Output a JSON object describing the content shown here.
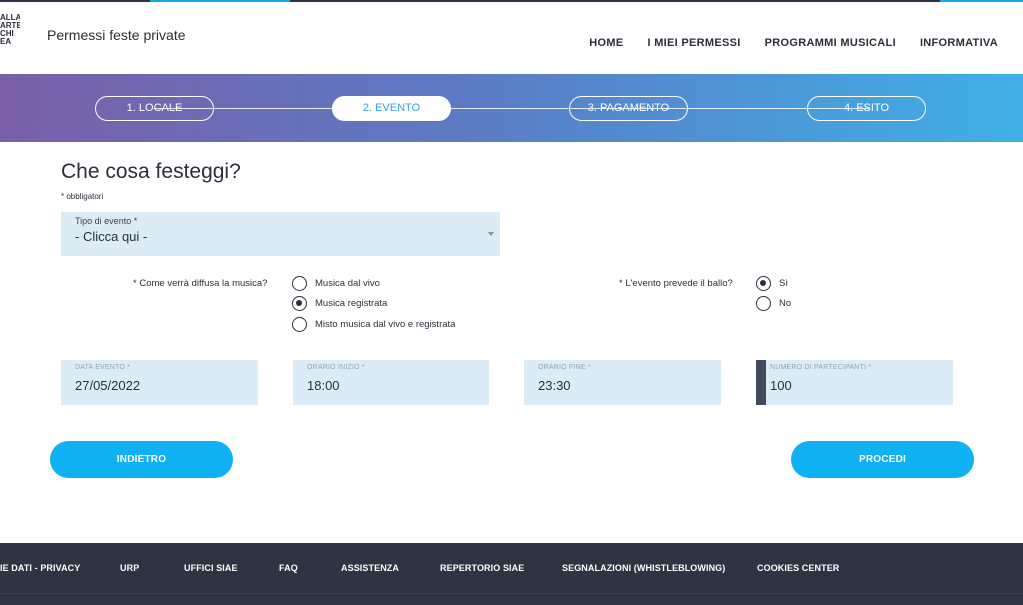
{
  "header": {
    "logo_lines": [
      "ALLA",
      "ARTE",
      "CHI",
      "EA"
    ],
    "app_title": "Permessi feste private",
    "nav": [
      "HOME",
      "I MIEI PERMESSI",
      "PROGRAMMI MUSICALI",
      "INFORMATIVA"
    ]
  },
  "steps": [
    {
      "label": "1. LOCALE",
      "active": false
    },
    {
      "label": "2. EVENTO",
      "active": true
    },
    {
      "label": "3. PAGAMENTO",
      "active": false
    },
    {
      "label": "4. ESITO",
      "active": false
    }
  ],
  "form": {
    "title": "Che cosa festeggi?",
    "required_note": "* obbligatori",
    "event_type": {
      "label": "Tipo di evento *",
      "value": "- Clicca qui -"
    },
    "music": {
      "question": "* Come verrà diffusa la musica?",
      "options": [
        "Musica dal vivo",
        "Musica registrata",
        "Misto musica dal vivo e registrata"
      ],
      "selected": "Musica registrata"
    },
    "dance": {
      "question": "* L'evento prevede il ballo?",
      "options": [
        "Sì",
        "No"
      ],
      "selected": "Sì"
    },
    "fields": {
      "date": {
        "label": "DATA EVENTO *",
        "value": "27/05/2022"
      },
      "start": {
        "label": "ORARIO INIZIO *",
        "value": "18:00"
      },
      "end": {
        "label": "ORARIO FINE *",
        "value": "23:30"
      },
      "participants": {
        "label": "NUMERO DI PARTECIPANTI *",
        "value": "100"
      }
    },
    "back_label": "INDIETRO",
    "next_label": "PROCEDI"
  },
  "footer": {
    "links": [
      "IE DATI - PRIVACY",
      "URP",
      "UFFICI SIAE",
      "FAQ",
      "ASSISTENZA",
      "REPERTORIO SIAE",
      "SEGNALAZIONI (WHISTLEBLOWING)",
      "COOKIES CENTER"
    ]
  },
  "colors": {
    "accent": "#0fb1f2",
    "footer_bg": "#2e3441",
    "field_bg": "#dcecf6"
  }
}
